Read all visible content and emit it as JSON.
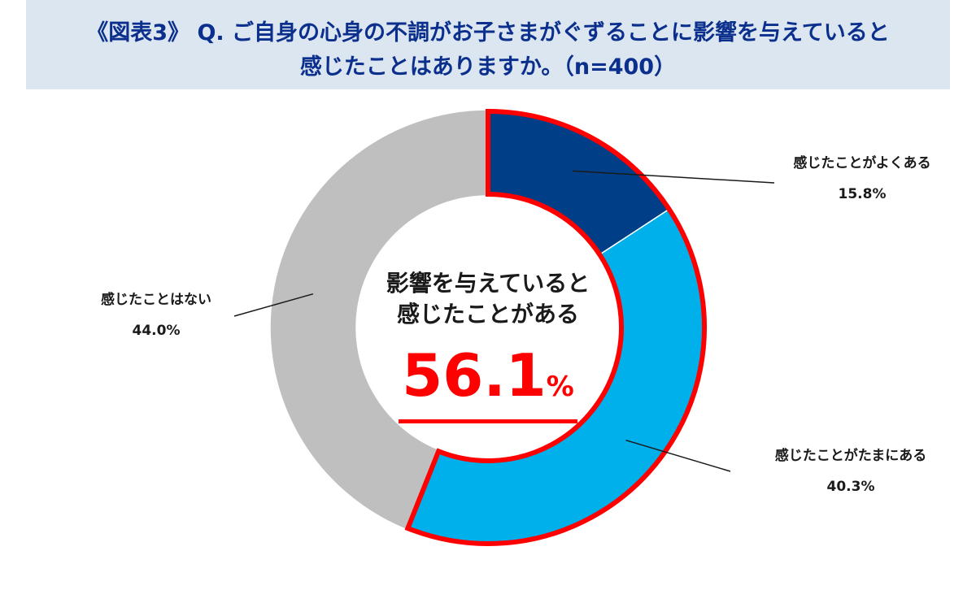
{
  "title": {
    "line1": "《図表3》 Q. ご自身の心身の不調がお子さまがぐずることに影響を与えていると",
    "line2": "感じたことはありますか。（n=400）"
  },
  "center": {
    "line1": "影響を与えていると",
    "line2": "感じたことがある",
    "value": "56.1",
    "unit": "%"
  },
  "chart_data": {
    "type": "pie",
    "donut": true,
    "unit": "%",
    "slices": [
      {
        "label": "感じたことがよくある",
        "value": 15.8,
        "value_label": "15.8%",
        "color": "#003f87",
        "highlighted": true
      },
      {
        "label": "感じたことがたまにある",
        "value": 40.3,
        "value_label": "40.3%",
        "color": "#00b0eb",
        "highlighted": true
      },
      {
        "label": "感じたことはない",
        "value": 44.0,
        "value_label": "44.0%",
        "color": "#bfbfbf",
        "highlighted": false
      }
    ],
    "highlight_color": "#ff0000"
  }
}
